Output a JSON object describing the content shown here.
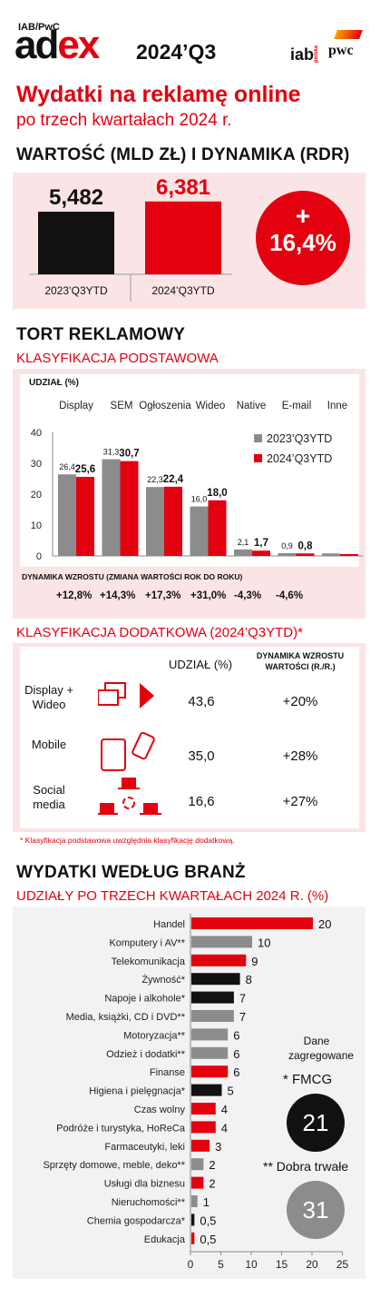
{
  "header": {
    "brand_top": "IAB/PwC",
    "brand_part1": "ad",
    "brand_part2": "ex",
    "period": "2024’Q3",
    "logo_iab": "iab",
    "logo_iab_small": "polska",
    "logo_pwc": "pwc"
  },
  "title": {
    "line1": "Wydatki na reklamę online",
    "line2": "po trzech kwartałach 2024 r."
  },
  "colors": {
    "accent": "#e3000f",
    "dark": "#111111",
    "gray": "#8c8c8c",
    "pink": "#fbe4e6"
  },
  "value_section": {
    "title": "WARTOŚĆ (MLD ZŁ) I DYNAMIKA (RDR)",
    "growth_sign": "+",
    "growth_value": "16,4%"
  },
  "pie_section": {
    "title": "TORT REKLAMOWY",
    "subtitle": "KLASYFIKACJA PODSTAWOWA",
    "share_label": "UDZIAŁ (%)",
    "dynamics_title": "DYNAMIKA WZROSTU (ZMIANA WARTOŚCI ROK DO ROKU)",
    "dynamics": [
      "+12,8%",
      "+14,3%",
      "+17,3%",
      "+31,0%",
      "-4,3%",
      "-4,6%"
    ]
  },
  "extra_section": {
    "title": "KLASYFIKACJA DODATKOWA (2024’Q3YTD)*",
    "col_share": "UDZIAŁ (%)",
    "col_dyn": "DYNAMIKA WZROSTU WARTOŚCI (R./R.)",
    "rows": [
      {
        "label": "Display + Wideo",
        "share": "43,6",
        "dyn": "+20%",
        "icon": "display-video-icon"
      },
      {
        "label": "Mobile",
        "share": "35,0",
        "dyn": "+28%",
        "icon": "mobile-devices-icon"
      },
      {
        "label": "Social media",
        "share": "16,6",
        "dyn": "+27%",
        "icon": "social-network-icon"
      }
    ],
    "footnote": "* Klasyfikacja podstawowa uwzględnia klasyfikację dodatkową."
  },
  "industry_section": {
    "title": "WYDATKI WEDŁUG BRANŻ",
    "subtitle": "UDZIAŁY PO TRZECH KWARTAŁACH 2024 R. (%)",
    "aggregated_title": "Dane zagregowane",
    "fmcg_label": "* FMCG",
    "fmcg_value": "21",
    "durable_label": "** Dobra trwałe",
    "durable_value": "31"
  },
  "chart_data": [
    {
      "type": "bar",
      "categories": [
        "2023’Q3YTD",
        "2024’Q3YTD"
      ],
      "values": [
        5.482,
        6.381
      ],
      "value_labels": [
        "5,482",
        "6,381"
      ],
      "colors": [
        "#111111",
        "#e3000f"
      ]
    },
    {
      "type": "bar",
      "categories": [
        "Display",
        "SEM",
        "Ogłoszenia",
        "Wideo",
        "Native",
        "E-mail",
        "Inne"
      ],
      "series": [
        {
          "name": "2023’Q3YTD",
          "color": "#8c8c8c",
          "values": [
            26.4,
            31.3,
            22.3,
            16.0,
            2.1,
            0.9,
            0.8
          ],
          "labels": [
            "26,4",
            "31,3",
            "22,3",
            "16,0",
            "2,1",
            "0,9",
            ""
          ]
        },
        {
          "name": "2024’Q3YTD",
          "color": "#e3000f",
          "values": [
            25.6,
            30.7,
            22.4,
            18.0,
            1.7,
            0.8,
            0.6
          ],
          "labels": [
            "25,6",
            "30,7",
            "22,4",
            "18,0",
            "1,7",
            "0,8",
            ""
          ]
        }
      ],
      "yticks": [
        "0",
        "10",
        "20",
        "30",
        "40"
      ],
      "ylim": [
        0,
        40
      ],
      "legend": "right"
    },
    {
      "type": "bar",
      "orientation": "horizontal",
      "categories": [
        "Handel",
        "Komputery i AV**",
        "Telekomunikacja",
        "Żywność*",
        "Napoje i alkohole*",
        "Media, książki, CD i DVD**",
        "Motoryzacja**",
        "Odzież i dodatki**",
        "Finanse",
        "Higiena i pielęgnacja*",
        "Czas wolny",
        "Podróże i turystyka, HoReCa",
        "Farmaceutyki, leki",
        "Sprzęty domowe, meble, deko**",
        "Usługi dla biznesu",
        "Nieruchomości**",
        "Chemia gospodarcza*",
        "Edukacja"
      ],
      "values": [
        20,
        10,
        9,
        8,
        7,
        7,
        6,
        6,
        6,
        5,
        4,
        4,
        3,
        2,
        2,
        1,
        0.5,
        0.5
      ],
      "value_labels": [
        "20",
        "10",
        "9",
        "8",
        "7",
        "7",
        "6",
        "6",
        "6",
        "5",
        "4",
        "4",
        "3",
        "2",
        "2",
        "1",
        "0,5",
        "0,5"
      ],
      "colors": [
        "#e3000f",
        "#8c8c8c",
        "#e3000f",
        "#111111",
        "#111111",
        "#8c8c8c",
        "#8c8c8c",
        "#8c8c8c",
        "#e3000f",
        "#111111",
        "#e3000f",
        "#e3000f",
        "#e3000f",
        "#8c8c8c",
        "#e3000f",
        "#8c8c8c",
        "#111111",
        "#e3000f"
      ],
      "xticks": [
        "0",
        "5",
        "10",
        "15",
        "20",
        "25"
      ],
      "xlim": [
        0,
        25
      ]
    }
  ]
}
